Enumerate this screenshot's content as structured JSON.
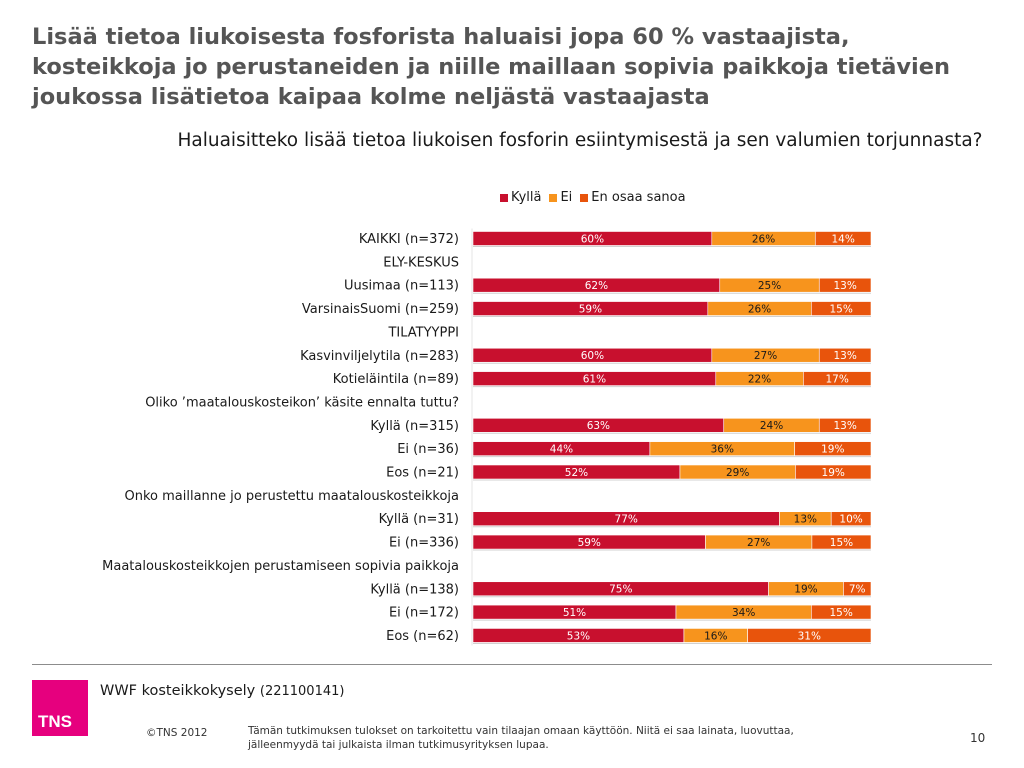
{
  "headline": "Lisää tietoa liukoisesta fosforista haluaisi jopa 60 % vastaajista, kosteikkoja jo perustaneiden ja niille maillaan sopivia paikkoja tietävien joukossa lisätietoa kaipaa kolme neljästä vastaajasta",
  "colors": {
    "kylla": "#c8102e",
    "ei": "#f7941d",
    "eos": "#e8540c"
  },
  "chart_data": {
    "type": "bar",
    "orientation": "horizontal-stacked-100",
    "title": "Haluaisitteko lisää tietoa liukoisen fosforin esiintymisestä ja sen valumien torjunnasta?",
    "legend": [
      "Kyllä",
      "Ei",
      "En osaa sanoa"
    ],
    "legend_position": "top",
    "xlim": [
      0,
      100
    ],
    "rows": [
      {
        "label": "KAIKKI (n=372)",
        "values": [
          60,
          26,
          14
        ],
        "labels": [
          "60%",
          "26%",
          "14%"
        ]
      },
      {
        "label": "ELY-KESKUS",
        "header": true
      },
      {
        "label": "Uusimaa (n=113)",
        "values": [
          62,
          25,
          13
        ],
        "labels": [
          "62%",
          "25%",
          "13%"
        ]
      },
      {
        "label": "VarsinaisSuomi (n=259)",
        "values": [
          59,
          26,
          15
        ],
        "labels": [
          "59%",
          "26%",
          "15%"
        ]
      },
      {
        "label": "TILATYYPPI",
        "header": true
      },
      {
        "label": "Kasvinviljelytila (n=283)",
        "values": [
          60,
          27,
          13
        ],
        "labels": [
          "60%",
          "27%",
          "13%"
        ]
      },
      {
        "label": "Kotieläintila (n=89)",
        "values": [
          61,
          22,
          17
        ],
        "labels": [
          "61%",
          "22%",
          "17%"
        ]
      },
      {
        "label": "Oliko ’maatalouskosteikon’ käsite ennalta tuttu?",
        "header": true
      },
      {
        "label": "Kyllä (n=315)",
        "values": [
          63,
          24,
          13
        ],
        "labels": [
          "63%",
          "24%",
          "13%"
        ]
      },
      {
        "label": "Ei (n=36)",
        "values": [
          44,
          36,
          19
        ],
        "labels": [
          "44%",
          "36%",
          "19%"
        ]
      },
      {
        "label": "Eos (n=21)",
        "values": [
          52,
          29,
          19
        ],
        "labels": [
          "52%",
          "29%",
          "19%"
        ]
      },
      {
        "label": "Onko maillanne jo perustettu maatalouskosteikkoja",
        "header": true
      },
      {
        "label": "Kyllä (n=31)",
        "values": [
          77,
          13,
          10
        ],
        "labels": [
          "77%",
          "13%",
          "10%"
        ]
      },
      {
        "label": "Ei (n=336)",
        "values": [
          59,
          27,
          15
        ],
        "labels": [
          "59%",
          "27%",
          "15%"
        ]
      },
      {
        "label": "Maatalouskosteikkojen perustamiseen sopivia paikkoja",
        "header": true
      },
      {
        "label": "Kyllä (n=138)",
        "values": [
          75,
          19,
          7
        ],
        "labels": [
          "75%",
          "19%",
          "7%"
        ]
      },
      {
        "label": "Ei (n=172)",
        "values": [
          51,
          34,
          15
        ],
        "labels": [
          "51%",
          "34%",
          "15%"
        ]
      },
      {
        "label": "Eos (n=62)",
        "values": [
          53,
          16,
          31
        ],
        "labels": [
          "53%",
          "16%",
          "31%"
        ]
      }
    ]
  },
  "footer": {
    "logo": "TNS",
    "survey_name": "WWF kosteikkokysely",
    "survey_code": "(221100141)",
    "copyright": "©TNS 2012",
    "disclaimer": "Tämän tutkimuksen tulokset on tarkoitettu vain tilaajan omaan käyttöön. Niitä ei saa  lainata, luovuttaa, jälleenmyydä tai julkaista ilman tutkimusyrityksen lupaa.",
    "page_number": "10"
  }
}
